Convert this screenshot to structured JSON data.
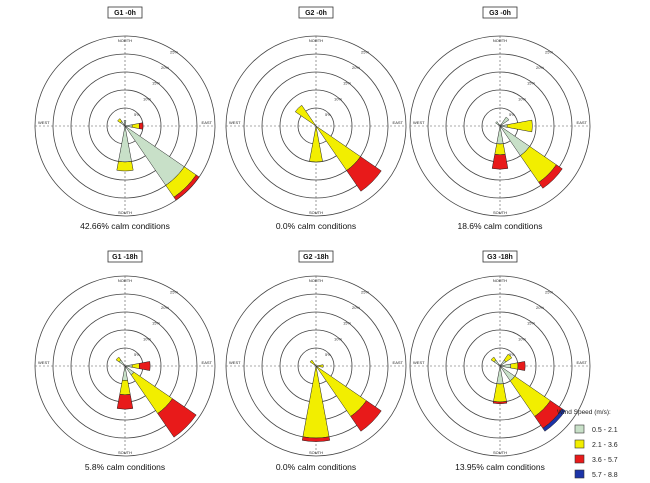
{
  "chart_data": [
    {
      "type": "polar-bar",
      "title": "G1 -0h",
      "caption": "42.66% calm conditions",
      "ring_labels": [
        "5%",
        "10%",
        "15%",
        "20%",
        "25%"
      ],
      "ring_max": 25,
      "directions": [
        "NORTH",
        "SOUTH",
        "WEST",
        "EAST"
      ],
      "petals": [
        {
          "dir": 315,
          "segments": [
            1.5,
            1
          ]
        },
        {
          "dir": 0,
          "segments": [
            1.5
          ]
        },
        {
          "dir": 90,
          "segments": [
            2,
            2,
            1
          ]
        },
        {
          "dir": 135,
          "segments": [
            20,
            4,
            1
          ]
        },
        {
          "dir": 180,
          "segments": [
            10,
            2.5
          ]
        }
      ]
    },
    {
      "type": "polar-bar",
      "title": "G2 -0h",
      "caption": "0.0% calm conditions",
      "ring_labels": [
        "5%",
        "10%",
        "15%",
        "20%",
        "25%"
      ],
      "ring_max": 25,
      "directions": [
        "NORTH",
        "SOUTH",
        "WEST",
        "EAST"
      ],
      "petals": [
        {
          "dir": 315,
          "segments": [
            0,
            7
          ]
        },
        {
          "dir": 135,
          "segments": [
            0,
            15,
            7
          ]
        },
        {
          "dir": 180,
          "segments": [
            0,
            10
          ]
        }
      ]
    },
    {
      "type": "polar-bar",
      "title": "G3 -0h",
      "caption": "18.6% calm conditions",
      "ring_labels": [
        "5%",
        "10%",
        "15%",
        "20%",
        "25%"
      ],
      "ring_max": 25,
      "directions": [
        "NORTH",
        "SOUTH",
        "WEST",
        "EAST"
      ],
      "petals": [
        {
          "dir": 315,
          "segments": [
            1.5
          ]
        },
        {
          "dir": 45,
          "segments": [
            3
          ]
        },
        {
          "dir": 90,
          "segments": [
            2,
            7
          ]
        },
        {
          "dir": 135,
          "segments": [
            10,
            9,
            2
          ]
        },
        {
          "dir": 180,
          "segments": [
            5,
            3,
            4
          ]
        }
      ]
    },
    {
      "type": "polar-bar",
      "title": "G1 -18h",
      "caption": "5.8% calm conditions",
      "ring_labels": [
        "5%",
        "10%",
        "15%",
        "20%",
        "25%"
      ],
      "ring_max": 25,
      "directions": [
        "NORTH",
        "SOUTH",
        "WEST",
        "EAST"
      ],
      "petals": [
        {
          "dir": 315,
          "segments": [
            2,
            1
          ]
        },
        {
          "dir": 90,
          "segments": [
            2,
            2,
            3
          ]
        },
        {
          "dir": 135,
          "segments": [
            3,
            13,
            8
          ]
        },
        {
          "dir": 180,
          "segments": [
            4,
            4,
            4
          ]
        }
      ]
    },
    {
      "type": "polar-bar",
      "title": "G2 -18h",
      "caption": "0.0% calm conditions",
      "ring_labels": [
        "5%",
        "10%",
        "15%",
        "20%",
        "25%"
      ],
      "ring_max": 25,
      "directions": [
        "NORTH",
        "SOUTH",
        "WEST",
        "EAST"
      ],
      "petals": [
        {
          "dir": 315,
          "segments": [
            0,
            2
          ]
        },
        {
          "dir": 90,
          "segments": [
            0,
            2
          ]
        },
        {
          "dir": 135,
          "segments": [
            0,
            17,
            5
          ]
        },
        {
          "dir": 180,
          "segments": [
            0,
            20,
            1
          ]
        }
      ]
    },
    {
      "type": "polar-bar",
      "title": "G3 -18h",
      "caption": "13.95% calm conditions",
      "ring_labels": [
        "5%",
        "10%",
        "15%",
        "20%",
        "25%"
      ],
      "ring_max": 25,
      "directions": [
        "NORTH",
        "SOUTH",
        "WEST",
        "EAST"
      ],
      "petals": [
        {
          "dir": 315,
          "segments": [
            2,
            1
          ]
        },
        {
          "dir": 45,
          "segments": [
            2,
            2
          ]
        },
        {
          "dir": 90,
          "segments": [
            3,
            2,
            2
          ]
        },
        {
          "dir": 135,
          "segments": [
            5,
            12,
            4,
            1
          ]
        },
        {
          "dir": 180,
          "segments": [
            5,
            5,
            0.5
          ]
        }
      ]
    }
  ],
  "legend": {
    "title": "Wind Speed (m/s):",
    "items": [
      {
        "label": "0.5 - 2.1",
        "color": "#c8e0c8"
      },
      {
        "label": "2.1 - 3.6",
        "color": "#f2ee00"
      },
      {
        "label": "3.6 - 5.7",
        "color": "#e81a1a"
      },
      {
        "label": "5.7 - 8.8",
        "color": "#1c34a8"
      }
    ]
  }
}
